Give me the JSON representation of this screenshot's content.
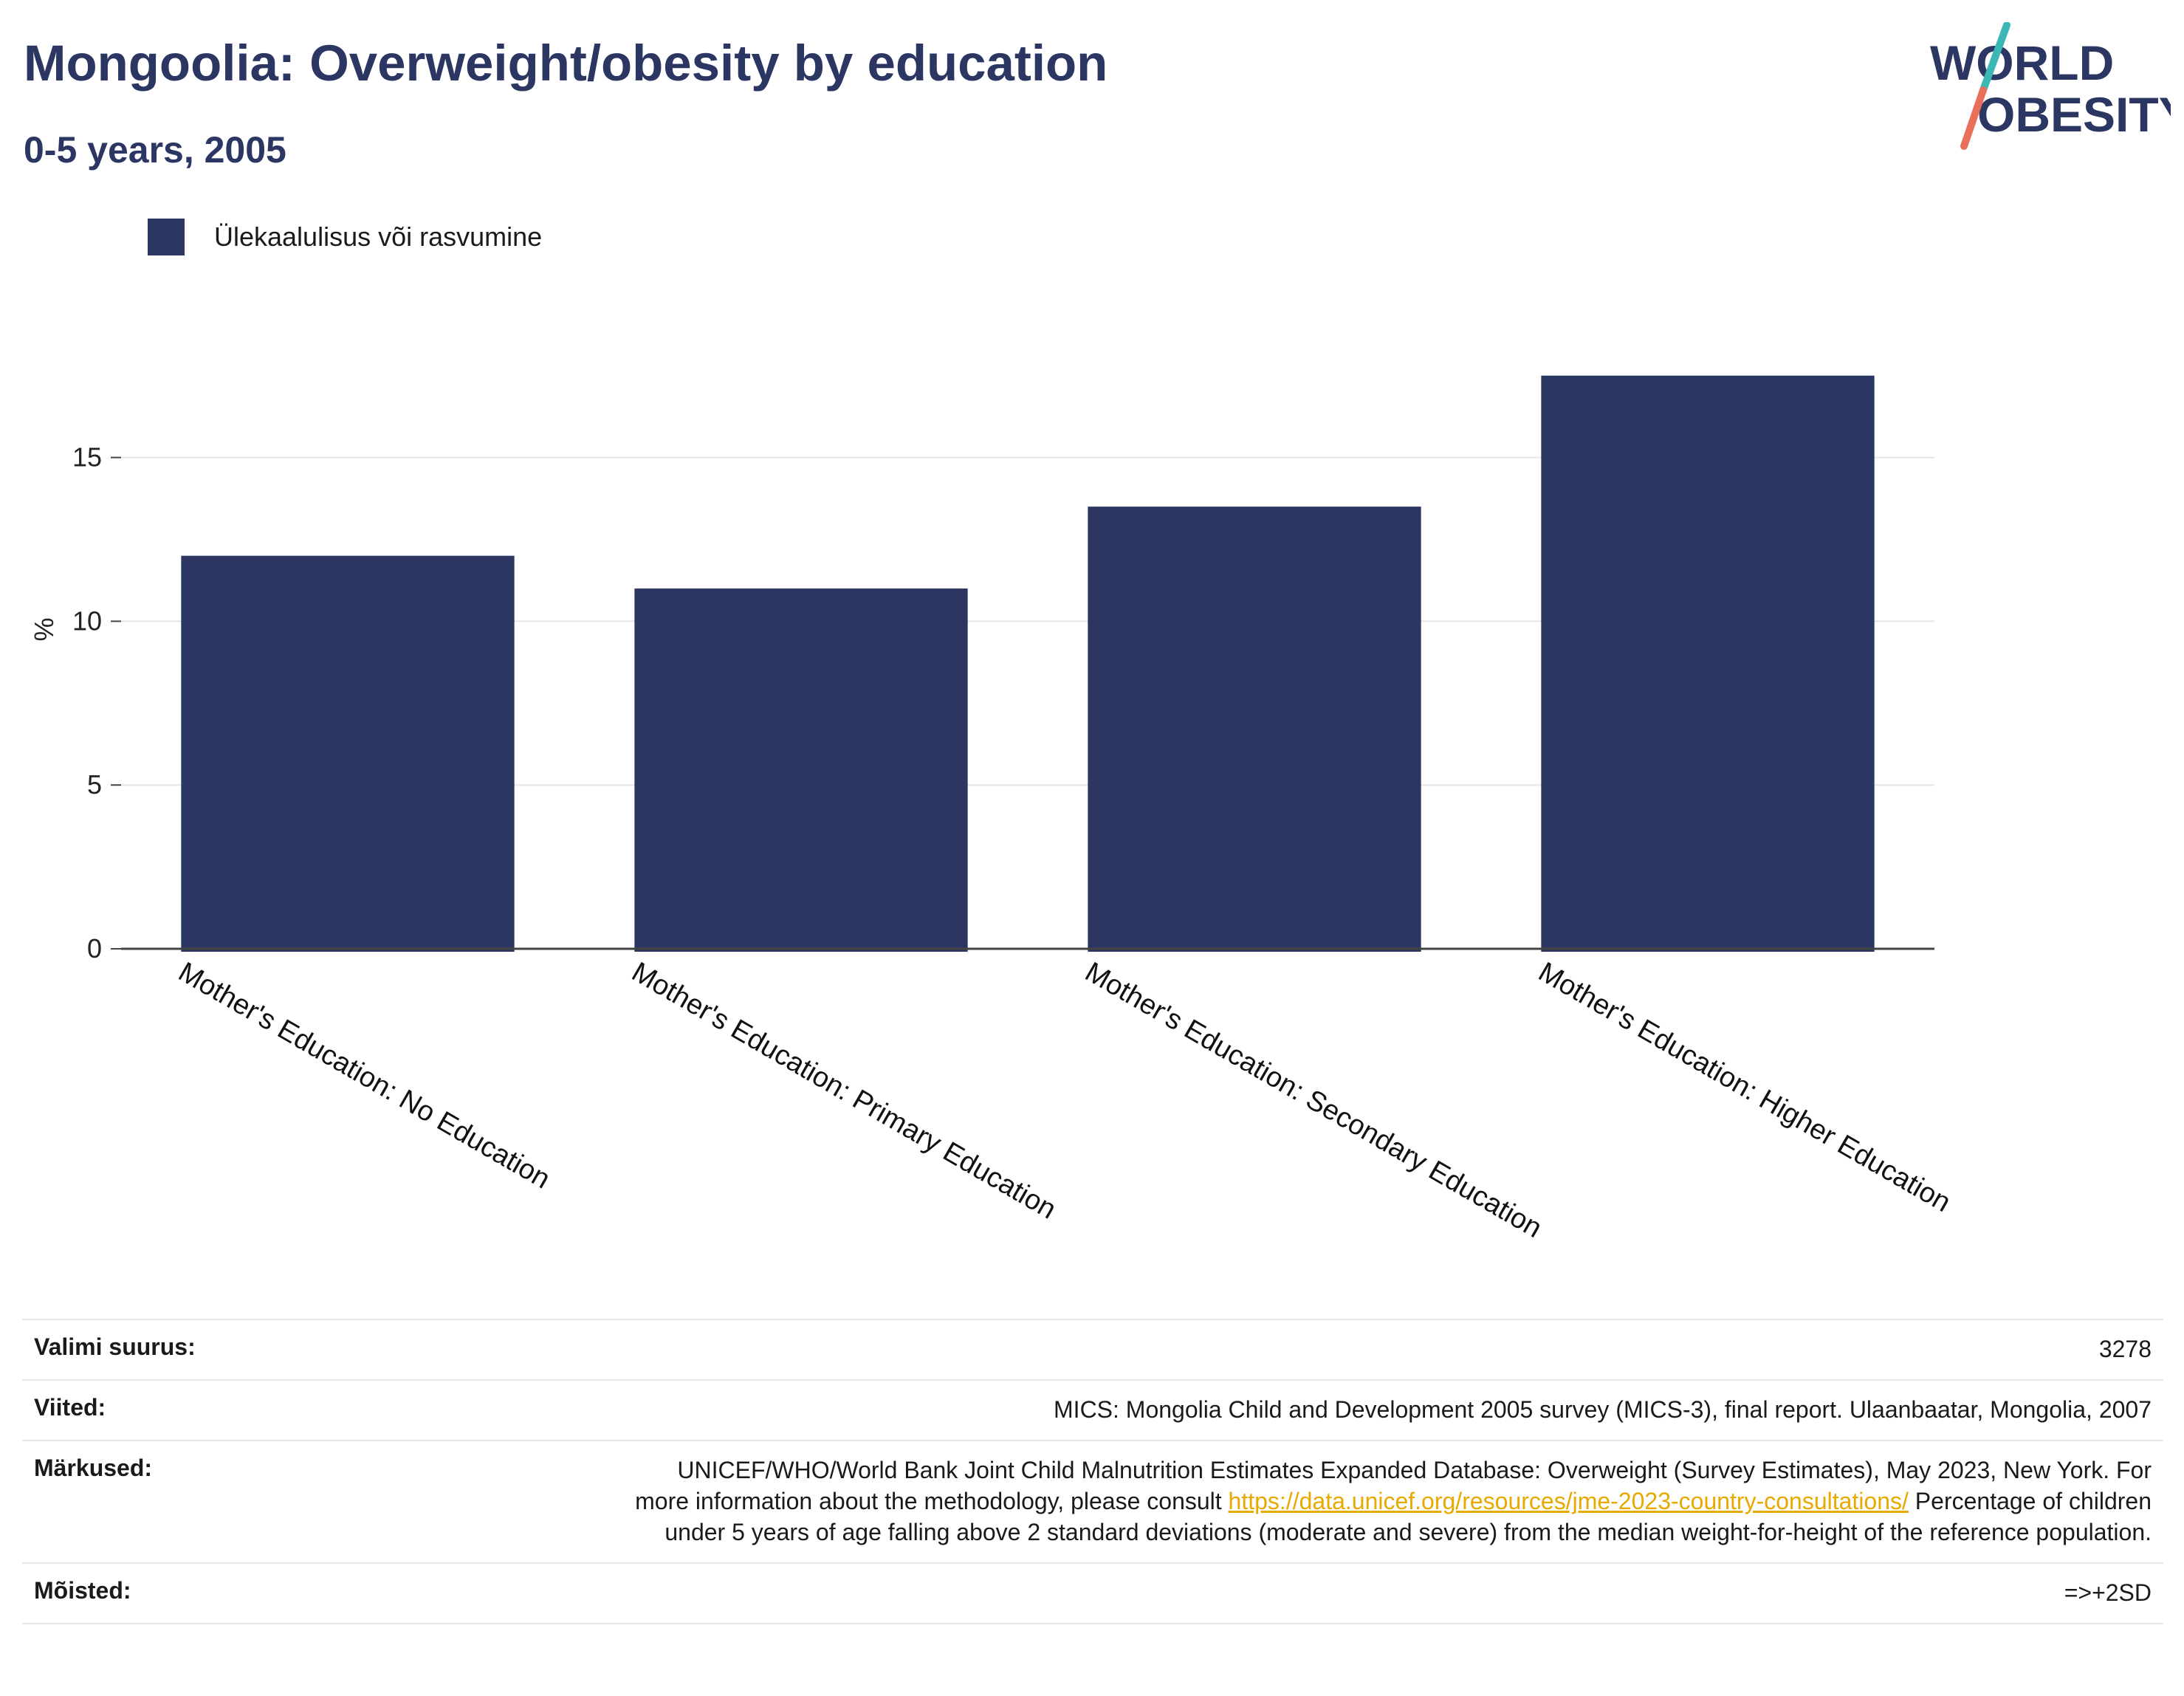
{
  "header": {
    "title": "Mongoolia: Overweight/obesity by education",
    "subtitle": "0-5 years, 2005"
  },
  "logo": {
    "line1": "WORLD",
    "line2": "OBESITY",
    "accent_teal": "#3bb8b5",
    "accent_coral": "#e8705a",
    "text_color": "#2b3762"
  },
  "legend": {
    "label": "Ülekaalulisus või rasvumine",
    "color": "#2b3762"
  },
  "chart_data": {
    "type": "bar",
    "title": "Mongoolia: Overweight/obesity by education",
    "subtitle": "0-5 years, 2005",
    "ylabel": "%",
    "xlabel": "",
    "ylim": [
      0,
      19.5
    ],
    "yticks": [
      0,
      5,
      10,
      15
    ],
    "grid": true,
    "legend_position": "top-left",
    "categories": [
      "Mother's Education: No Education",
      "Mother's Education: Primary Education",
      "Mother's Education: Secondary Education",
      "Mother's Education: Higher Education"
    ],
    "series": [
      {
        "name": "Ülekaalulisus või rasvumine",
        "values": [
          12.0,
          11.0,
          13.5,
          17.5
        ],
        "color": "#2b3762"
      }
    ]
  },
  "notes": [
    {
      "key": "Valimi suurus:",
      "value": "3278"
    },
    {
      "key": "Viited:",
      "value": "MICS: Mongolia Child and Development 2005 survey (MICS-3), final report. Ulaanbaatar, Mongolia, 2007"
    },
    {
      "key": "Märkused:",
      "value_pre": "UNICEF/WHO/World Bank Joint Child Malnutrition Estimates Expanded Database: Overweight (Survey Estimates), May 2023, New York. For more information about the methodology, please consult ",
      "link": "https://data.unicef.org/resources/jme-2023-country-consultations/",
      "value_post": " Percentage of children under 5 years of age falling above 2 standard deviations (moderate and severe) from the median weight-for-height of the reference population."
    },
    {
      "key": "Mõisted:",
      "value": "=>+2SD"
    }
  ]
}
